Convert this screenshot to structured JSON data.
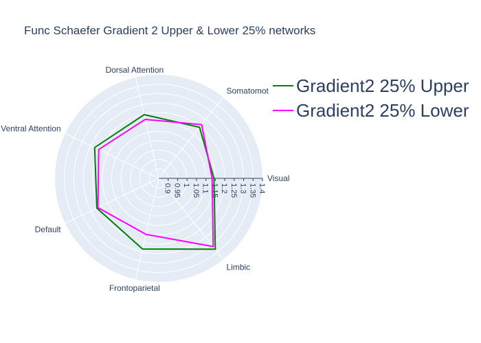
{
  "chart_data": {
    "type": "radar",
    "title": "Func Schaefer Gradient 2 Upper & Lower 25% networks",
    "categories": [
      "Visual",
      "Somatomot",
      "Dorsal Attention",
      "Ventral Attention",
      "Default",
      "Frontoparietal",
      "Limbic"
    ],
    "series": [
      {
        "name": "Gradient2 25% Upper",
        "color": "#008000",
        "values": [
          1.143,
          1.197,
          1.197,
          1.227,
          1.214,
          1.235,
          1.331
        ]
      },
      {
        "name": "Gradient2 25% Lower",
        "color": "#ff00ff",
        "values": [
          1.133,
          1.215,
          1.171,
          1.203,
          1.208,
          1.155,
          1.313
        ]
      }
    ],
    "radial_range": [
      0.85,
      1.4
    ],
    "radial_ticks": [
      "0.9",
      "0.95",
      "1",
      "1.05",
      "1.1",
      "1.15",
      "1.2",
      "1.25",
      "1.3",
      "1.35",
      "1.4"
    ],
    "legend_position": "top-right",
    "background_color": "#e5ecf6",
    "grid_color": "#ffffff"
  }
}
